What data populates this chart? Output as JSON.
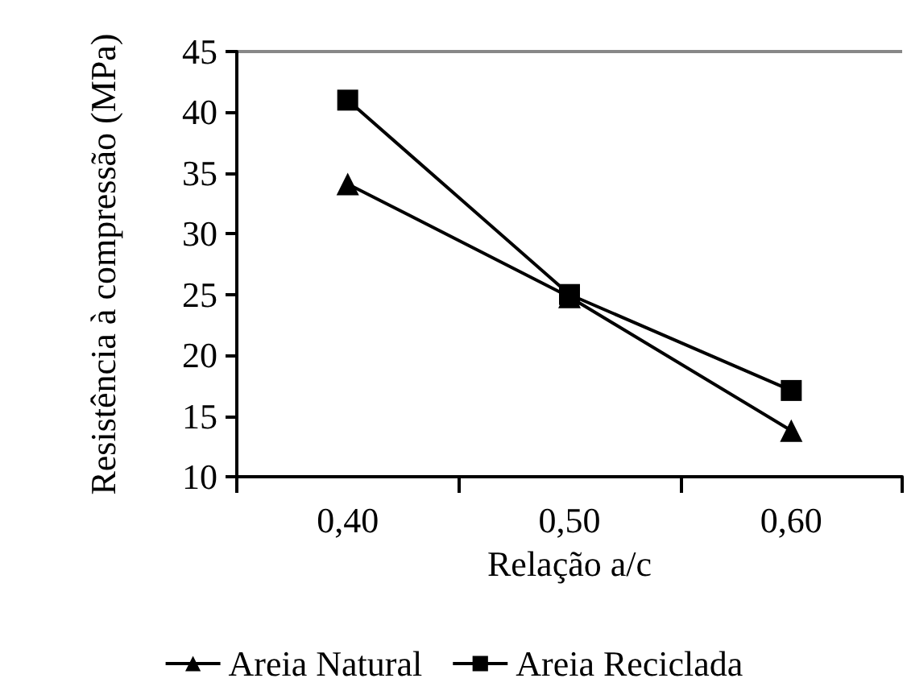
{
  "chart_data": {
    "type": "line",
    "xlabel": "Relação a/c",
    "ylabel": "Resistência à compressão (MPa)",
    "categories": [
      "0,40",
      "0,50",
      "0,60"
    ],
    "series": [
      {
        "name": "Areia Natural",
        "color": "#000000",
        "marker": "triangle",
        "values": [
          34.1,
          24.8,
          13.8
        ]
      },
      {
        "name": "Areia Reciclada",
        "color": "#000000",
        "marker": "square",
        "values": [
          41.0,
          25.0,
          17.1
        ]
      }
    ],
    "ylim": [
      10,
      45
    ],
    "yticks": [
      10,
      15,
      20,
      25,
      30,
      35,
      40,
      45
    ],
    "grid": false,
    "legend": "bottom",
    "line_style": "solid"
  }
}
